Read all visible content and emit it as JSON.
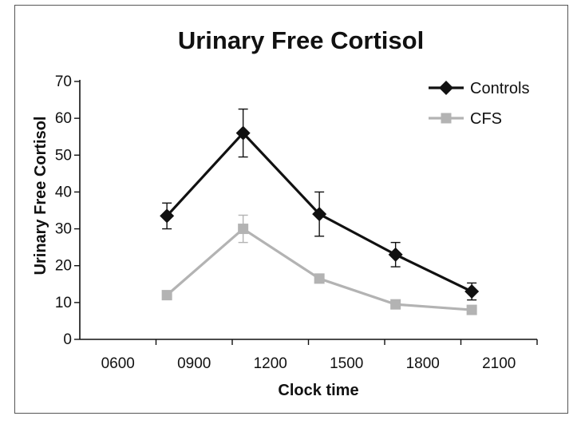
{
  "chart_data": {
    "type": "line",
    "title": "Urinary Free Cortisol",
    "xlabel": "Clock time",
    "ylabel": "Urinary Free Cortisol",
    "ylim": [
      0,
      70
    ],
    "yticks": [
      0,
      10,
      20,
      30,
      40,
      50,
      60,
      70
    ],
    "xlim": [
      300,
      2400
    ],
    "xticks": [
      "0600",
      "0900",
      "1200",
      "1500",
      "1800",
      "2100"
    ],
    "x": [
      700,
      1050,
      1400,
      1750,
      2100
    ],
    "grid": false,
    "legend_position": "top-right",
    "series": [
      {
        "name": "Controls",
        "marker": "diamond",
        "color": "#111111",
        "values": [
          33.5,
          56,
          34,
          23,
          13
        ],
        "error": [
          3.5,
          6.5,
          6,
          3.3,
          2.3
        ]
      },
      {
        "name": "CFS",
        "marker": "square",
        "color": "#b3b3b3",
        "values": [
          12,
          30,
          16.5,
          9.5,
          8
        ],
        "error": [
          0,
          3.7,
          0,
          0,
          0
        ]
      }
    ]
  }
}
